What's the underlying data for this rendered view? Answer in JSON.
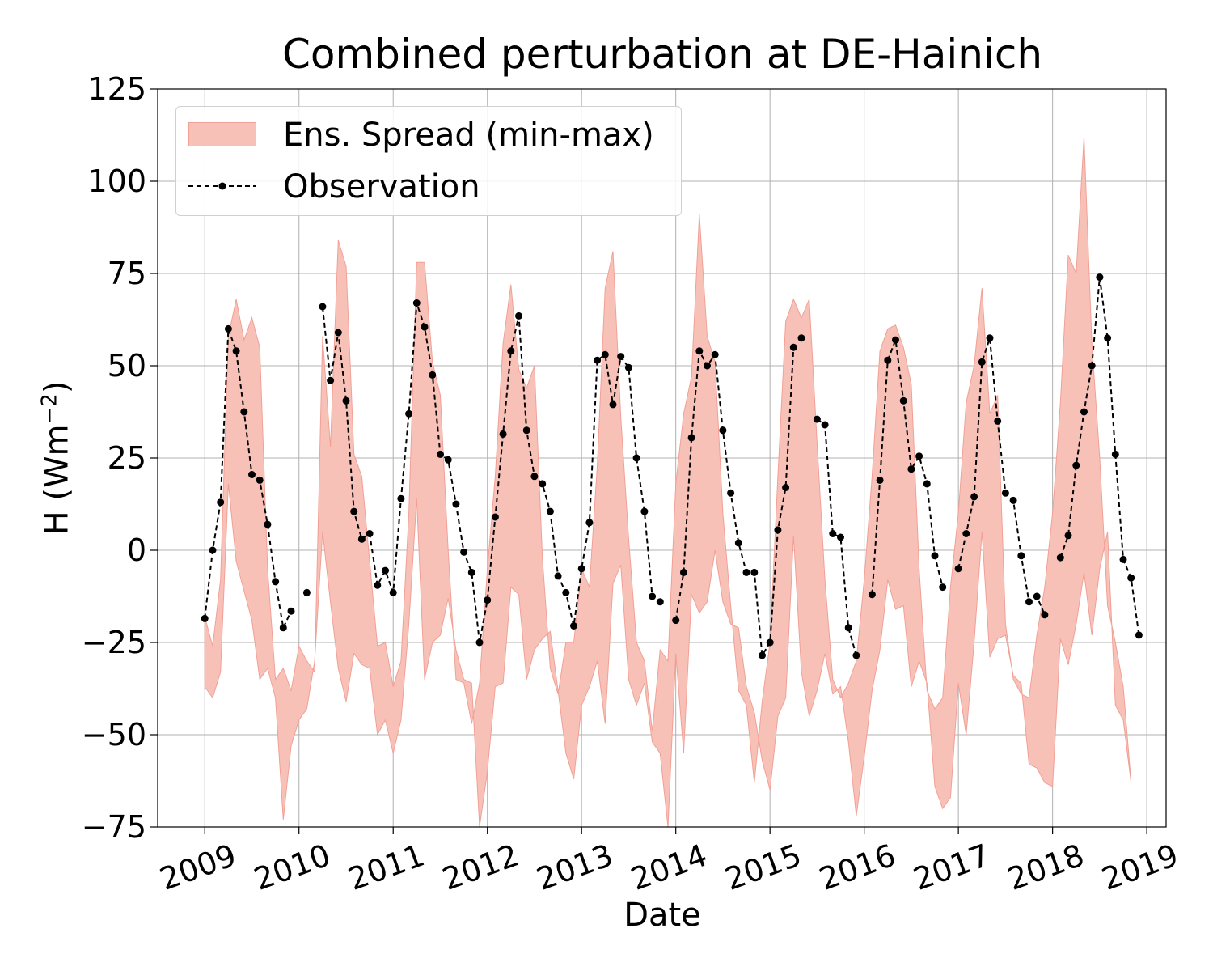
{
  "chart_data": {
    "type": "area",
    "title": "Combined perturbation at DE-Hainich",
    "xlabel": "Date",
    "ylabel": "H",
    "ylabel_unit": "(Wm",
    "ylabel_unit_sup": "−2",
    "ylabel_unit_close": ")",
    "xlim": [
      "2008-07-01",
      "2019-03-15"
    ],
    "ylim": [
      -75,
      125
    ],
    "x_ticks": [
      "2009",
      "2010",
      "2011",
      "2012",
      "2013",
      "2014",
      "2015",
      "2016",
      "2017",
      "2018",
      "2019"
    ],
    "y_ticks": [
      -75,
      -50,
      -25,
      0,
      25,
      50,
      75,
      100,
      125
    ],
    "grid": true,
    "legend_position": "upper-left",
    "colors": {
      "spread": "#f8c1b8",
      "spread_edge": "#f1a095",
      "observation": "#000000",
      "grid": "#b0b0b0"
    },
    "series": [
      {
        "name": "Ens. Spread (min-max)",
        "kind": "band",
        "x": [
          "2009-01",
          "2009-02",
          "2009-03",
          "2009-04",
          "2009-05",
          "2009-06",
          "2009-07",
          "2009-08",
          "2009-09",
          "2009-10",
          "2009-11",
          "2009-12",
          "2010-01",
          "2010-02",
          "2010-03",
          "2010-04",
          "2010-05",
          "2010-06",
          "2010-07",
          "2010-08",
          "2010-09",
          "2010-10",
          "2010-11",
          "2010-12",
          "2011-01",
          "2011-02",
          "2011-03",
          "2011-04",
          "2011-05",
          "2011-06",
          "2011-07",
          "2011-08",
          "2011-09",
          "2011-10",
          "2011-11",
          "2011-12",
          "2012-01",
          "2012-02",
          "2012-03",
          "2012-04",
          "2012-05",
          "2012-06",
          "2012-07",
          "2012-08",
          "2012-09",
          "2012-10",
          "2012-11",
          "2012-12",
          "2013-01",
          "2013-02",
          "2013-03",
          "2013-04",
          "2013-05",
          "2013-06",
          "2013-07",
          "2013-08",
          "2013-09",
          "2013-10",
          "2013-11",
          "2013-12",
          "2014-01",
          "2014-02",
          "2014-03",
          "2014-04",
          "2014-05",
          "2014-06",
          "2014-07",
          "2014-08",
          "2014-09",
          "2014-10",
          "2014-11",
          "2014-12",
          "2015-01",
          "2015-02",
          "2015-03",
          "2015-04",
          "2015-05",
          "2015-06",
          "2015-07",
          "2015-08",
          "2015-09",
          "2015-10",
          "2015-11",
          "2015-12",
          "2016-01",
          "2016-02",
          "2016-03",
          "2016-04",
          "2016-05",
          "2016-06",
          "2016-07",
          "2016-08",
          "2016-09",
          "2016-10",
          "2016-11",
          "2016-12",
          "2017-01",
          "2017-02",
          "2017-03",
          "2017-04",
          "2017-05",
          "2017-06",
          "2017-07",
          "2017-08",
          "2017-09",
          "2017-10",
          "2017-11",
          "2017-12",
          "2018-01",
          "2018-02",
          "2018-03",
          "2018-04",
          "2018-05",
          "2018-06",
          "2018-07",
          "2018-08",
          "2018-09",
          "2018-10",
          "2018-11",
          "2018-12"
        ],
        "max": [
          -18,
          -26,
          -8,
          58,
          68,
          57,
          63,
          55,
          -5,
          -35,
          -32,
          -38,
          -26,
          -30,
          -33,
          58,
          28,
          84,
          77,
          26,
          20,
          -3,
          -26,
          -25,
          -37,
          -30,
          10,
          78,
          78,
          51,
          42,
          0,
          -35,
          -36,
          -47,
          -36,
          -5,
          20,
          56,
          72,
          49,
          44,
          50,
          -2,
          -32,
          -39,
          -25,
          -25,
          -5,
          -10,
          23,
          71,
          81,
          36,
          3,
          -25,
          -30,
          -49,
          -27,
          -30,
          18,
          37,
          47,
          91,
          58,
          51,
          10,
          -15,
          -38,
          -42,
          -63,
          -41,
          -25,
          20,
          62,
          68,
          63,
          68,
          29,
          -8,
          -35,
          -40,
          -36,
          -30,
          -8,
          20,
          54,
          60,
          61,
          55,
          45,
          -5,
          -38,
          -43,
          -40,
          -10,
          10,
          40,
          50,
          71,
          37,
          42,
          -20,
          -35,
          -39,
          -40,
          -23,
          -10,
          10,
          40,
          80,
          75,
          112,
          56,
          25,
          -15,
          -25,
          -37
        ],
        "min": [
          -37,
          -40,
          -33,
          18,
          -3,
          -11,
          -19,
          -35,
          -32,
          -40,
          -73,
          -53,
          -46,
          -43,
          -30,
          5,
          -14,
          -32,
          -41,
          -28,
          -31,
          -32,
          -50,
          -46,
          -55,
          -46,
          -20,
          14,
          -35,
          -25,
          -23,
          -13,
          -27,
          -35,
          -36,
          -75,
          -60,
          -37,
          -36,
          -10,
          -12,
          -35,
          -27,
          -24,
          -22,
          -38,
          -55,
          -62,
          -42,
          -37,
          -30,
          -47,
          -9,
          -4,
          -35,
          -42,
          -36,
          -52,
          -55,
          -75,
          -28,
          -55,
          -12,
          -17,
          -14,
          0,
          -14,
          -20,
          -21,
          -37,
          -44,
          -57,
          -65,
          -45,
          -40,
          4,
          -33,
          -45,
          -38,
          -28,
          -39,
          -37,
          -52,
          -72,
          -56,
          -38,
          -27,
          -8,
          -16,
          -15,
          -37,
          -30,
          -36,
          -64,
          -70,
          -67,
          -36,
          -50,
          -25,
          5,
          -29,
          -24,
          -23,
          -34,
          -36,
          -58,
          -59,
          -63,
          -64,
          -24,
          -31,
          -20,
          -6,
          -23,
          -5,
          5,
          -42,
          -46,
          -63
        ]
      },
      {
        "name": "Observation",
        "kind": "line",
        "segments": [
          {
            "x": [
              "2009-01",
              "2009-02",
              "2009-03",
              "2009-04",
              "2009-05",
              "2009-06",
              "2009-07",
              "2009-08",
              "2009-09",
              "2009-10",
              "2009-11",
              "2009-12"
            ],
            "y": [
              -18.5,
              0,
              13,
              60,
              54,
              37.5,
              20.5,
              19,
              7,
              -8.5,
              -21,
              -16.5
            ]
          },
          {
            "x": [
              "2010-02"
            ],
            "y": [
              -11.5
            ]
          },
          {
            "x": [
              "2010-04",
              "2010-05",
              "2010-06",
              "2010-07",
              "2010-08",
              "2010-09",
              "2010-10",
              "2010-11",
              "2010-12",
              "2011-01",
              "2011-02",
              "2011-03",
              "2011-04",
              "2011-05",
              "2011-06",
              "2011-07",
              "2011-08",
              "2011-09",
              "2011-10",
              "2011-11",
              "2011-12",
              "2012-01",
              "2012-02",
              "2012-03",
              "2012-04",
              "2012-05",
              "2012-06",
              "2012-07",
              "2012-08",
              "2012-09",
              "2012-10",
              "2012-11",
              "2012-12",
              "2013-01",
              "2013-02",
              "2013-03",
              "2013-04",
              "2013-05",
              "2013-06",
              "2013-07",
              "2013-08",
              "2013-09",
              "2013-10",
              "2013-11"
            ],
            "y": [
              66,
              46,
              59,
              40.5,
              10.5,
              3,
              4.5,
              -9.5,
              -5.5,
              -11.5,
              14,
              37,
              67,
              60.5,
              47.5,
              26,
              24.5,
              12.5,
              -0.5,
              -6,
              -25,
              -13.5,
              9,
              31.5,
              54,
              63.5,
              32.5,
              20,
              18,
              10.5,
              -7,
              -11.5,
              -20.5,
              -5,
              7.5,
              51.5,
              53,
              39.5,
              52.5,
              49.5,
              25,
              10.5,
              -12.5,
              -14
            ]
          },
          {
            "x": [
              "2014-01",
              "2014-02",
              "2014-03",
              "2014-04",
              "2014-05",
              "2014-06",
              "2014-07",
              "2014-08",
              "2014-09",
              "2014-10",
              "2014-11",
              "2014-12",
              "2015-01",
              "2015-02",
              "2015-03",
              "2015-04"
            ],
            "y": [
              -19,
              -6,
              30.5,
              54,
              50,
              53,
              32.5,
              15.5,
              2,
              -6,
              -6,
              -28.5,
              -25,
              5.5,
              17,
              55
            ]
          },
          {
            "x": [
              "2015-05"
            ],
            "y": [
              57.5
            ]
          },
          {
            "x": [
              "2015-07",
              "2015-08",
              "2015-09",
              "2015-10",
              "2015-11",
              "2015-12"
            ],
            "y": [
              35.5,
              34,
              4.5,
              3.5,
              -21,
              -28.5
            ]
          },
          {
            "x": [
              "2016-02",
              "2016-03",
              "2016-04",
              "2016-05",
              "2016-06",
              "2016-07",
              "2016-08",
              "2016-09",
              "2016-10",
              "2016-11"
            ],
            "y": [
              -12,
              19,
              51.5,
              57,
              40.5,
              22,
              25.5,
              18,
              -1.5,
              -10
            ]
          },
          {
            "x": [
              "2017-01",
              "2017-02",
              "2017-03",
              "2017-04",
              "2017-05",
              "2017-06",
              "2017-07",
              "2017-08",
              "2017-09",
              "2017-10",
              "2017-11",
              "2017-12"
            ],
            "y": [
              -5,
              4.5,
              14.5,
              51,
              57.5,
              35,
              15.5,
              13.5,
              -1.5,
              -14,
              -12.5,
              -17.5
            ]
          },
          {
            "x": [
              "2018-02",
              "2018-03",
              "2018-04",
              "2018-05",
              "2018-06",
              "2018-07",
              "2018-08",
              "2018-09",
              "2018-10",
              "2018-11",
              "2018-12"
            ],
            "y": [
              -2,
              4,
              23,
              37.5,
              50,
              74,
              57.5,
              26,
              -2.5,
              -7.5,
              -23
            ]
          }
        ]
      }
    ]
  }
}
